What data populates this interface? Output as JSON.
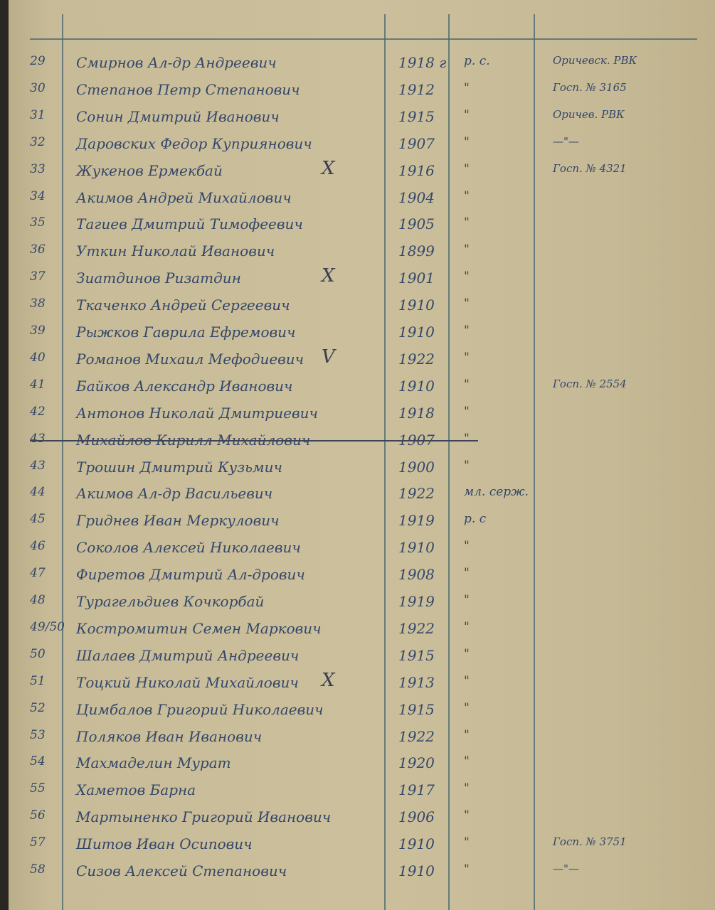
{
  "document": {
    "rows": [
      {
        "num": "29",
        "name": "Смирнов Ал-др Андреевич",
        "year": "1918 г",
        "rank": "р. с.",
        "note": "Оричевск. РВК"
      },
      {
        "num": "30",
        "name": "Степанов Петр Степанович",
        "year": "1912",
        "rank": "\"",
        "note": "Госп. № 3165"
      },
      {
        "num": "31",
        "name": "Сонин Дмитрий Иванович",
        "year": "1915",
        "rank": "\"",
        "note": "Оричев. РВК"
      },
      {
        "num": "32",
        "name": "Даровских Федор Куприянович",
        "year": "1907",
        "rank": "\"",
        "note": "—\"—"
      },
      {
        "num": "33",
        "name": "Жукенов Ермекбай",
        "year": "1916",
        "rank": "\"",
        "note": "Госп. № 4321",
        "mark": "X"
      },
      {
        "num": "34",
        "name": "Акимов Андрей Михайлович",
        "year": "1904",
        "rank": "\"",
        "note": ""
      },
      {
        "num": "35",
        "name": "Тагиев Дмитрий Тимофеевич",
        "year": "1905",
        "rank": "\"",
        "note": ""
      },
      {
        "num": "36",
        "name": "Уткин Николай Иванович",
        "year": "1899",
        "rank": "\"",
        "note": ""
      },
      {
        "num": "37",
        "name": "Зиатдинов Ризатдин",
        "year": "1901",
        "rank": "\"",
        "note": "",
        "mark": "X"
      },
      {
        "num": "38",
        "name": "Ткаченко Андрей Сергеевич",
        "year": "1910",
        "rank": "\"",
        "note": ""
      },
      {
        "num": "39",
        "name": "Рыжков Гаврила Ефремович",
        "year": "1910",
        "rank": "\"",
        "note": ""
      },
      {
        "num": "40",
        "name": "Романов Михаил Мефодиевич",
        "year": "1922",
        "rank": "\"",
        "note": "",
        "mark": "V"
      },
      {
        "num": "41",
        "name": "Байков Александр Иванович",
        "year": "1910",
        "rank": "\"",
        "note": "Госп. № 2554"
      },
      {
        "num": "42",
        "name": "Антонов Николай Дмитриевич",
        "year": "1918",
        "rank": "\"",
        "note": ""
      },
      {
        "num": "43",
        "name": "Михайлов Кирилл Михайлович",
        "year": "1907",
        "rank": "\"",
        "note": "",
        "struck": true
      },
      {
        "num": "43",
        "name": "Трошин Дмитрий Кузьмич",
        "year": "1900",
        "rank": "\"",
        "note": ""
      },
      {
        "num": "44",
        "name": "Акимов Ал-др Васильевич",
        "year": "1922",
        "rank": "мл. серж.",
        "note": ""
      },
      {
        "num": "45",
        "name": "Гриднев Иван Меркулович",
        "year": "1919",
        "rank": "р. с",
        "note": ""
      },
      {
        "num": "46",
        "name": "Соколов Алексей Николаевич",
        "year": "1910",
        "rank": "\"",
        "note": ""
      },
      {
        "num": "47",
        "name": "Фиретов Дмитрий Ал-дрович",
        "year": "1908",
        "rank": "\"",
        "note": ""
      },
      {
        "num": "48",
        "name": "Турагельдиев Кочкорбай",
        "year": "1919",
        "rank": "\"",
        "note": ""
      },
      {
        "num": "49/50",
        "name": "Костромитин Семен Маркович",
        "year": "1922",
        "rank": "\"",
        "note": ""
      },
      {
        "num": "50",
        "name": "Шалаев Дмитрий Андреевич",
        "year": "1915",
        "rank": "\"",
        "note": ""
      },
      {
        "num": "51",
        "name": "Тоцкий Николай Михайлович",
        "year": "1913",
        "rank": "\"",
        "note": "",
        "mark": "X"
      },
      {
        "num": "52",
        "name": "Цимбалов Григорий Николаевич",
        "year": "1915",
        "rank": "\"",
        "note": ""
      },
      {
        "num": "53",
        "name": "Поляков Иван Иванович",
        "year": "1922",
        "rank": "\"",
        "note": ""
      },
      {
        "num": "54",
        "name": "Махмаделин Мурат",
        "year": "1920",
        "rank": "\"",
        "note": ""
      },
      {
        "num": "55",
        "name": "Хаметов Барна",
        "year": "1917",
        "rank": "\"",
        "note": ""
      },
      {
        "num": "56",
        "name": "Мартыненко Григорий Иванович",
        "year": "1906",
        "rank": "\"",
        "note": ""
      },
      {
        "num": "57",
        "name": "Шитов Иван Осипович",
        "year": "1910",
        "rank": "\"",
        "note": "Госп. № 3751"
      },
      {
        "num": "58",
        "name": "Сизов Алексей Степанович",
        "year": "1910",
        "rank": "\"",
        "note": "—\"—"
      }
    ]
  },
  "colors": {
    "ink": "#34476a",
    "paper": "#cbbf9c",
    "rule": "#4b6a72"
  }
}
